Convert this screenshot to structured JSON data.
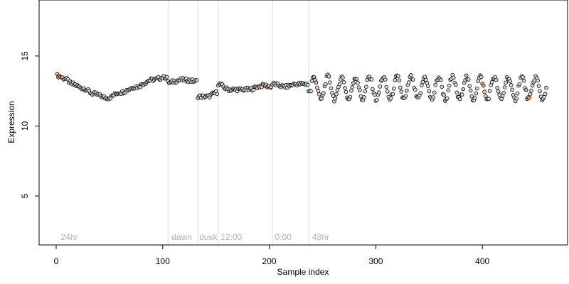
{
  "chart_data": {
    "type": "scatter",
    "title": "",
    "xlabel": "Sample index",
    "ylabel": "Expression",
    "xlim": [
      -16,
      480
    ],
    "ylim": [
      1.5,
      19
    ],
    "x_ticks": [
      0,
      100,
      200,
      300,
      400
    ],
    "y_ticks": [
      5,
      10,
      15
    ],
    "grid": false,
    "legend": "none",
    "colors": {
      "point_edge": "#000000",
      "point_fill_default": "#d9d9d9",
      "point_fill_blue": "#aec7e8",
      "point_fill_orange": "#f5a76c",
      "phase_line": "#dedede",
      "phase_label": "#b3b3b3"
    },
    "phase_boundaries": [
      105,
      133,
      152,
      203,
      237
    ],
    "phase_labels": [
      {
        "text": "24hr",
        "x": 3
      },
      {
        "text": "dawn",
        "x": 107
      },
      {
        "text": "dusk",
        "x": 133
      },
      {
        "text": "12:00",
        "x": 153
      },
      {
        "text": "0:00",
        "x": 204
      },
      {
        "text": "48hr",
        "x": 239
      }
    ],
    "segments": [
      {
        "range": [
          1,
          104
        ],
        "pattern": "smooth",
        "knots": [
          [
            1,
            13.6
          ],
          [
            8,
            13.4
          ],
          [
            15,
            13.0
          ],
          [
            25,
            12.7
          ],
          [
            35,
            12.3
          ],
          [
            48,
            12.0
          ],
          [
            60,
            12.4
          ],
          [
            75,
            12.8
          ],
          [
            90,
            13.3
          ],
          [
            104,
            13.5
          ]
        ]
      },
      {
        "range": [
          105,
          132
        ],
        "pattern": "smooth",
        "knots": [
          [
            105,
            13.1
          ],
          [
            118,
            13.3
          ],
          [
            132,
            13.2
          ]
        ]
      },
      {
        "range": [
          133,
          151
        ],
        "pattern": "smooth",
        "knots": [
          [
            133,
            12.1
          ],
          [
            142,
            12.1
          ],
          [
            151,
            12.4
          ]
        ]
      },
      {
        "range": [
          152,
          202
        ],
        "pattern": "smooth",
        "knots": [
          [
            152,
            13.0
          ],
          [
            162,
            12.6
          ],
          [
            180,
            12.6
          ],
          [
            195,
            12.9
          ],
          [
            202,
            12.8
          ]
        ]
      },
      {
        "range": [
          203,
          236
        ],
        "pattern": "smooth",
        "knots": [
          [
            203,
            13.0
          ],
          [
            215,
            12.8
          ],
          [
            225,
            13.0
          ],
          [
            236,
            13.0
          ]
        ]
      },
      {
        "range": [
          237,
          460
        ],
        "pattern": "oscillating",
        "mean": 12.7,
        "amplitude": 0.8,
        "period": 13,
        "start_x": 240,
        "start_y": 12.5
      }
    ],
    "orange_x": [
      1,
      2,
      3,
      84,
      86,
      190,
      192,
      194,
      196,
      242,
      244,
      398,
      400,
      401,
      441,
      442,
      444
    ],
    "blue_x": [
      20,
      22,
      50,
      110,
      158,
      250,
      279,
      282,
      300,
      340,
      365,
      382,
      385
    ]
  }
}
